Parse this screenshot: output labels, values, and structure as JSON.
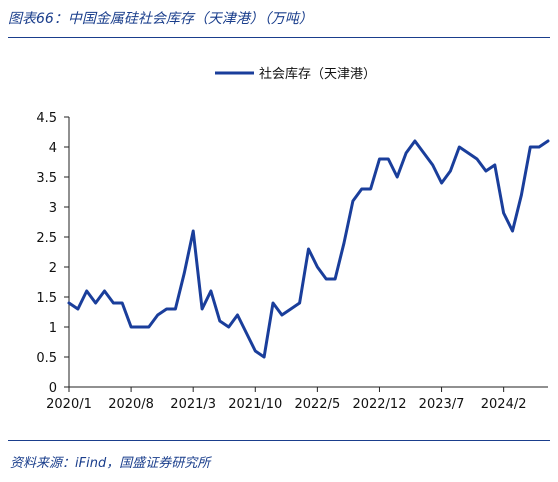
{
  "figure": {
    "title": "图表66：中国金属硅社会库存（天津港）（万吨）",
    "source": "资料来源：iFind，国盛证券研究所"
  },
  "chart_data": {
    "type": "line",
    "title": "",
    "xlabel": "",
    "ylabel": "",
    "ylim": [
      0,
      4.5
    ],
    "yticks": [
      0,
      0.5,
      1,
      1.5,
      2,
      2.5,
      3,
      3.5,
      4,
      4.5
    ],
    "ytick_labels": [
      "0",
      "0.5",
      "1",
      "1.5",
      "2",
      "2.5",
      "3",
      "3.5",
      "4",
      "4.5"
    ],
    "xlim": [
      "2020/1",
      "2024/7"
    ],
    "xticks": [
      "2020/1",
      "2020/8",
      "2021/3",
      "2021/10",
      "2022/5",
      "2022/12",
      "2023/7",
      "2024/2"
    ],
    "grid": false,
    "legend_position": "top-right",
    "color": "#1a3e9b",
    "series": [
      {
        "name": "社会库存（天津港）",
        "x": [
          "2020/1",
          "2020/2",
          "2020/3",
          "2020/4",
          "2020/5",
          "2020/6",
          "2020/7",
          "2020/8",
          "2020/9",
          "2020/10",
          "2020/11",
          "2020/12",
          "2021/1",
          "2021/2",
          "2021/3",
          "2021/4",
          "2021/5",
          "2021/6",
          "2021/7",
          "2021/8",
          "2021/9",
          "2021/10",
          "2021/11",
          "2021/12",
          "2022/1",
          "2022/2",
          "2022/3",
          "2022/4",
          "2022/5",
          "2022/6",
          "2022/7",
          "2022/8",
          "2022/9",
          "2022/10",
          "2022/11",
          "2022/12",
          "2023/1",
          "2023/2",
          "2023/3",
          "2023/4",
          "2023/5",
          "2023/6",
          "2023/7",
          "2023/8",
          "2023/9",
          "2023/10",
          "2023/11",
          "2023/12",
          "2024/1",
          "2024/2",
          "2024/3",
          "2024/4",
          "2024/5",
          "2024/6",
          "2024/7"
        ],
        "values": [
          1.4,
          1.3,
          1.6,
          1.4,
          1.6,
          1.4,
          1.4,
          1.0,
          1.0,
          1.0,
          1.2,
          1.3,
          1.3,
          1.9,
          2.6,
          1.3,
          1.6,
          1.1,
          1.0,
          1.2,
          0.9,
          0.6,
          0.5,
          1.4,
          1.2,
          1.3,
          1.4,
          2.3,
          2.0,
          1.8,
          1.8,
          2.4,
          3.1,
          3.3,
          3.3,
          3.8,
          3.8,
          3.5,
          3.9,
          4.1,
          3.9,
          3.7,
          3.4,
          3.6,
          4.0,
          3.9,
          3.8,
          3.6,
          3.7,
          2.9,
          2.6,
          3.2,
          4.0,
          4.0,
          4.1
        ]
      }
    ]
  }
}
